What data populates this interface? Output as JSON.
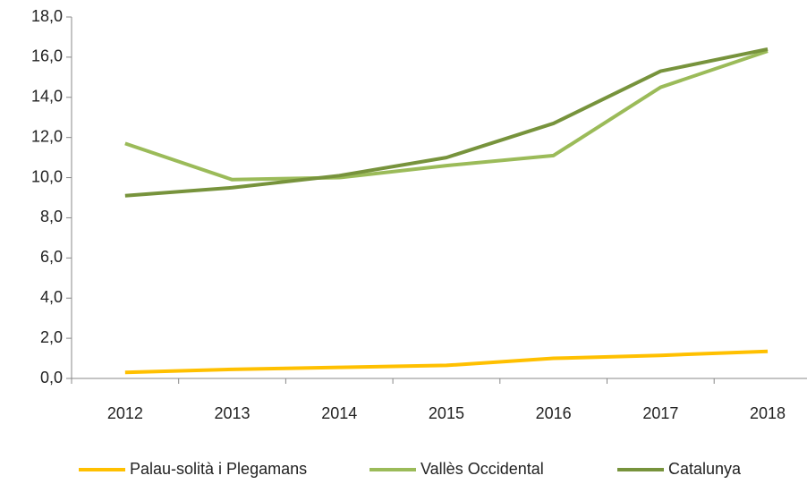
{
  "chart_data": {
    "type": "line",
    "categories": [
      "2012",
      "2013",
      "2014",
      "2015",
      "2016",
      "2017",
      "2018"
    ],
    "series": [
      {
        "name": "Palau-solità i Plegamans",
        "color": "#ffc000",
        "values": [
          0.3,
          0.45,
          0.55,
          0.65,
          1.0,
          1.15,
          1.35
        ]
      },
      {
        "name": "Vallès Occidental",
        "color": "#9bbb59",
        "values": [
          11.7,
          9.9,
          10.0,
          10.6,
          11.1,
          14.5,
          16.3
        ]
      },
      {
        "name": "Catalunya",
        "color": "#77933c",
        "values": [
          9.1,
          9.5,
          10.1,
          11.0,
          12.7,
          15.3,
          16.4
        ]
      }
    ],
    "ylim": [
      0,
      18
    ],
    "yticks": [
      {
        "value": 0,
        "label": "0,0"
      },
      {
        "value": 2,
        "label": "2,0"
      },
      {
        "value": 4,
        "label": "4,0"
      },
      {
        "value": 6,
        "label": "6,0"
      },
      {
        "value": 8,
        "label": "8,0"
      },
      {
        "value": 10,
        "label": "10,0"
      },
      {
        "value": 12,
        "label": "12,0"
      },
      {
        "value": 14,
        "label": "14,0"
      },
      {
        "value": 16,
        "label": "16,0"
      },
      {
        "value": 18,
        "label": "18,0"
      }
    ],
    "legend": "bottom",
    "grid": false
  }
}
